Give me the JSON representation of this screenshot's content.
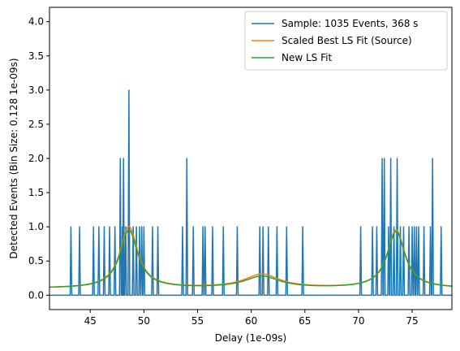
{
  "chart_data": {
    "type": "line",
    "xlabel": "Delay (1e-09s)",
    "ylabel": "Detected Events (Bin Size: 0.128 1e-09s)",
    "xlim": [
      41.2,
      78.7
    ],
    "ylim": [
      -0.21,
      4.21
    ],
    "xticks": [
      "45",
      "50",
      "55",
      "60",
      "65",
      "70",
      "75"
    ],
    "yticks": [
      "0.0",
      "0.5",
      "1.0",
      "1.5",
      "2.0",
      "2.5",
      "3.0",
      "3.5",
      "4.0"
    ],
    "grid": false,
    "legend_position": "top-right",
    "series": [
      {
        "name": "Sample: 1035 Events, 368 s",
        "color": "#1f77b4",
        "kind": "histogram",
        "bin_size": 0.128,
        "spikes": [
          [
            43.2,
            1
          ],
          [
            44.0,
            1
          ],
          [
            45.3,
            1
          ],
          [
            45.8,
            1
          ],
          [
            46.3,
            1
          ],
          [
            46.8,
            1
          ],
          [
            47.3,
            1
          ],
          [
            47.8,
            2
          ],
          [
            48.0,
            1
          ],
          [
            48.1,
            2
          ],
          [
            48.3,
            1
          ],
          [
            48.6,
            3
          ],
          [
            49.0,
            1
          ],
          [
            49.3,
            1
          ],
          [
            49.6,
            1
          ],
          [
            49.8,
            1
          ],
          [
            50.0,
            1
          ],
          [
            50.8,
            1
          ],
          [
            51.3,
            1
          ],
          [
            53.6,
            1
          ],
          [
            54.0,
            2
          ],
          [
            54.6,
            1
          ],
          [
            55.5,
            1
          ],
          [
            55.7,
            1
          ],
          [
            56.4,
            1
          ],
          [
            57.4,
            1
          ],
          [
            58.7,
            1
          ],
          [
            60.8,
            1
          ],
          [
            61.1,
            1
          ],
          [
            61.6,
            1
          ],
          [
            62.4,
            1
          ],
          [
            63.3,
            1
          ],
          [
            64.8,
            1
          ],
          [
            70.2,
            1
          ],
          [
            71.3,
            1
          ],
          [
            71.7,
            1
          ],
          [
            72.2,
            2
          ],
          [
            72.4,
            2
          ],
          [
            72.8,
            1
          ],
          [
            73.0,
            2
          ],
          [
            73.3,
            1
          ],
          [
            73.6,
            2
          ],
          [
            73.9,
            1
          ],
          [
            74.2,
            1
          ],
          [
            74.7,
            1
          ],
          [
            75.0,
            1
          ],
          [
            75.2,
            1
          ],
          [
            75.4,
            1
          ],
          [
            75.6,
            1
          ],
          [
            76.1,
            1
          ],
          [
            76.7,
            1
          ],
          [
            76.9,
            2
          ],
          [
            77.7,
            1
          ]
        ]
      },
      {
        "name": "Scaled Best LS Fit (Source)",
        "color": "#ff7f0e",
        "kind": "lorentzian",
        "baseline": 0.1,
        "peaks": [
          [
            48.6,
            1.0,
            1.0
          ],
          [
            61.0,
            0.3,
            2.0
          ],
          [
            73.5,
            0.95,
            1.0
          ]
        ]
      },
      {
        "name": "New LS Fit",
        "color": "#2ca02c",
        "kind": "lorentzian",
        "baseline": 0.1,
        "peaks": [
          [
            48.6,
            0.95,
            1.0
          ],
          [
            61.0,
            0.27,
            2.0
          ],
          [
            73.5,
            0.93,
            1.0
          ]
        ]
      }
    ]
  }
}
